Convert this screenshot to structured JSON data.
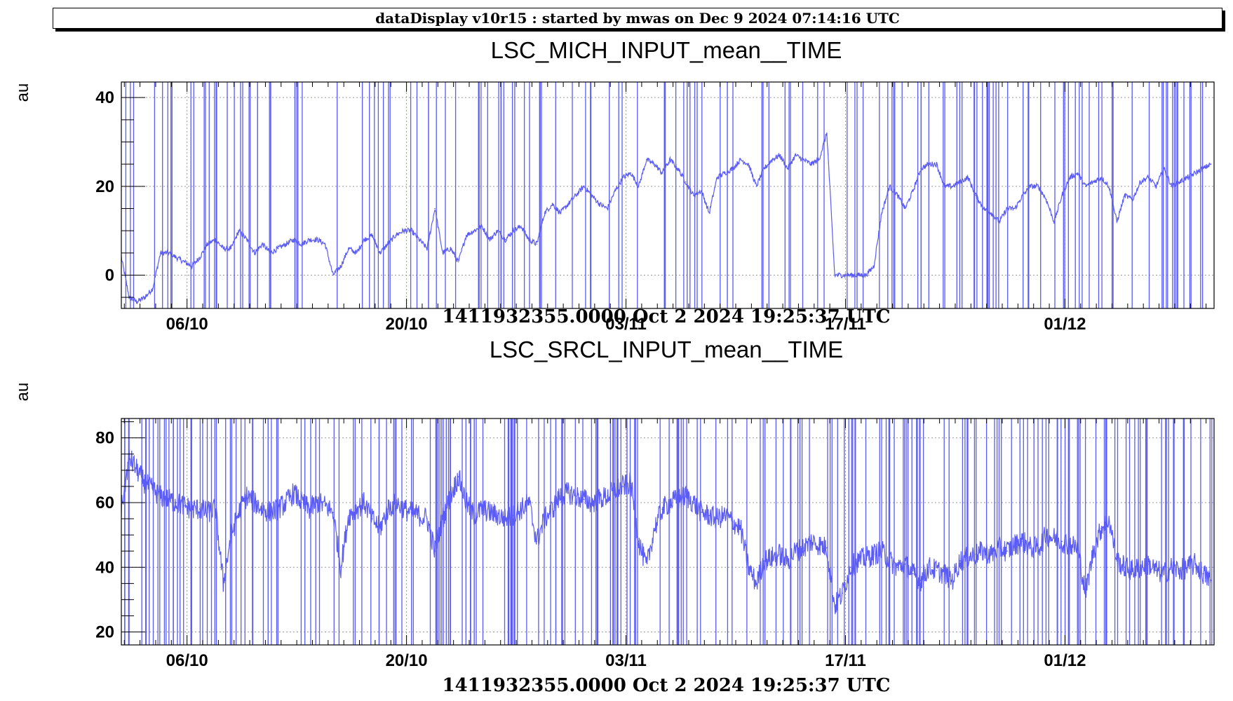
{
  "header": {
    "banner": "dataDisplay v10r15 : started by mwas on Dec  9 2024 07:14:16 UTC"
  },
  "colors": {
    "trace": "#5b5bf5",
    "grid": "#9a9a9a",
    "axis": "#000000"
  },
  "chart_data": [
    {
      "type": "line",
      "title": "LSC_MICH_INPUT_mean__TIME",
      "ylabel": "au",
      "xlabel": "1411932355.0000 Oct 2 2024 19:25:37 UTC",
      "x_unit": "days since Oct 2 2024 19:25:37 UTC",
      "xlim": [
        0,
        69.7
      ],
      "ylim": [
        -7.5,
        43.5
      ],
      "x_ticks": [
        {
          "x": 4.19,
          "label": "06/10"
        },
        {
          "x": 18.19,
          "label": "20/10"
        },
        {
          "x": 32.19,
          "label": "03/11"
        },
        {
          "x": 46.19,
          "label": "17/11"
        },
        {
          "x": 60.19,
          "label": "01/12"
        }
      ],
      "y_ticks": [
        {
          "y": 0,
          "label": "0"
        },
        {
          "y": 20,
          "label": "20"
        },
        {
          "y": 40,
          "label": "40"
        }
      ],
      "grid": true,
      "series": [
        {
          "name": "",
          "x": [
            0,
            0.5,
            1.0,
            1.5,
            2.0,
            2.5,
            3.0,
            3.5,
            4.0,
            4.5,
            5.0,
            5.5,
            6.0,
            6.5,
            7.0,
            7.5,
            8.0,
            8.5,
            9.0,
            9.5,
            10.0,
            10.5,
            11.0,
            11.5,
            12.0,
            12.5,
            13.0,
            13.5,
            14.0,
            14.5,
            15.0,
            15.5,
            16.0,
            16.5,
            17.0,
            17.5,
            18.0,
            18.5,
            19.0,
            19.5,
            20.0,
            20.5,
            21.0,
            21.5,
            22.0,
            22.5,
            23.0,
            23.5,
            24.0,
            24.5,
            25.0,
            25.5,
            26.0,
            26.5,
            27.0,
            27.5,
            28.0,
            28.5,
            29.0,
            29.5,
            30.0,
            30.5,
            31.0,
            31.5,
            32.0,
            32.5,
            33.0,
            33.5,
            34.0,
            34.5,
            35.0,
            35.5,
            36.0,
            36.5,
            37.0,
            37.5,
            38.0,
            38.5,
            39.0,
            39.5,
            40.0,
            40.5,
            41.0,
            41.5,
            42.0,
            42.5,
            43.0,
            43.5,
            44.0,
            44.5,
            45.0,
            45.5,
            46.0,
            46.5,
            47.0,
            47.5,
            48.0,
            48.5,
            49.0,
            49.5,
            50.0,
            50.5,
            51.0,
            51.5,
            52.0,
            52.5,
            53.0,
            53.5,
            54.0,
            54.5,
            55.0,
            55.5,
            56.0,
            56.5,
            57.0,
            57.5,
            58.0,
            58.5,
            59.0,
            59.5,
            60.0,
            60.5,
            61.0,
            61.5,
            62.0,
            62.5,
            63.0,
            63.5,
            64.0,
            64.5,
            65.0,
            65.5,
            66.0,
            66.5,
            67.0,
            67.5,
            68.0,
            68.5,
            69.0,
            69.5
          ],
          "y": [
            4,
            -5,
            -6,
            -5,
            -3,
            5,
            5,
            4,
            3,
            2,
            4,
            7,
            8,
            6,
            6,
            10,
            8,
            5,
            7,
            5,
            6,
            7,
            8,
            7,
            8,
            8,
            7,
            0,
            2,
            6,
            5,
            8,
            9,
            5,
            7,
            9,
            10,
            10,
            8,
            6,
            15,
            5,
            6,
            3,
            9,
            10,
            11,
            8,
            10,
            8,
            10,
            11,
            8,
            7,
            14,
            16,
            14,
            16,
            18,
            20,
            18,
            16,
            15,
            19,
            22,
            23,
            20,
            26,
            25,
            23,
            26,
            24,
            21,
            18,
            19,
            14,
            22,
            23,
            24,
            26,
            25,
            20,
            24,
            26,
            27,
            24,
            27,
            26,
            25,
            26,
            32,
            0,
            0,
            0,
            0,
            0,
            2,
            14,
            20,
            18,
            15,
            19,
            24,
            25,
            25,
            20,
            20,
            21,
            22,
            18,
            15,
            14,
            12,
            15,
            15,
            18,
            20,
            20,
            17,
            12,
            18,
            22,
            23,
            20,
            21,
            22,
            20,
            12,
            18,
            17,
            21,
            22,
            20,
            24,
            20,
            21,
            22,
            23,
            24,
            25
          ]
        }
      ]
    },
    {
      "type": "line",
      "title": "LSC_SRCL_INPUT_mean__TIME",
      "ylabel": "au",
      "xlabel": "1411932355.0000 Oct 2 2024 19:25:37 UTC",
      "x_unit": "days since Oct 2 2024 19:25:37 UTC",
      "xlim": [
        0,
        69.7
      ],
      "ylim": [
        16,
        86
      ],
      "x_ticks": [
        {
          "x": 4.19,
          "label": "06/10"
        },
        {
          "x": 18.19,
          "label": "20/10"
        },
        {
          "x": 32.19,
          "label": "03/11"
        },
        {
          "x": 46.19,
          "label": "17/11"
        },
        {
          "x": 60.19,
          "label": "01/12"
        }
      ],
      "y_ticks": [
        {
          "y": 20,
          "label": "20"
        },
        {
          "y": 40,
          "label": "40"
        },
        {
          "y": 60,
          "label": "60"
        },
        {
          "y": 80,
          "label": "80"
        }
      ],
      "grid": true,
      "series": [
        {
          "name": "",
          "x": [
            0,
            0.5,
            1.0,
            1.5,
            2.0,
            2.5,
            3.0,
            3.5,
            4.0,
            4.5,
            5.0,
            5.5,
            6.0,
            6.5,
            7.0,
            7.5,
            8.0,
            8.5,
            9.0,
            9.5,
            10.0,
            10.5,
            11.0,
            11.5,
            12.0,
            12.5,
            13.0,
            13.5,
            14.0,
            14.5,
            15.0,
            15.5,
            16.0,
            16.5,
            17.0,
            17.5,
            18.0,
            18.5,
            19.0,
            19.5,
            20.0,
            20.5,
            21.0,
            21.5,
            22.0,
            22.5,
            23.0,
            23.5,
            24.0,
            24.5,
            25.0,
            25.5,
            26.0,
            26.5,
            27.0,
            27.5,
            28.0,
            28.5,
            29.0,
            29.5,
            30.0,
            30.5,
            31.0,
            31.5,
            32.0,
            32.5,
            33.0,
            33.5,
            34.0,
            34.5,
            35.0,
            35.5,
            36.0,
            36.5,
            37.0,
            37.5,
            38.0,
            38.5,
            39.0,
            39.5,
            40.0,
            40.5,
            41.0,
            41.5,
            42.0,
            42.5,
            43.0,
            43.5,
            44.0,
            44.5,
            45.0,
            45.5,
            46.0,
            46.5,
            47.0,
            47.5,
            48.0,
            48.5,
            49.0,
            49.5,
            50.0,
            50.5,
            51.0,
            51.5,
            52.0,
            52.5,
            53.0,
            53.5,
            54.0,
            54.5,
            55.0,
            55.5,
            56.0,
            56.5,
            57.0,
            57.5,
            58.0,
            58.5,
            59.0,
            59.5,
            60.0,
            60.5,
            61.0,
            61.5,
            62.0,
            62.5,
            63.0,
            63.5,
            64.0,
            64.5,
            65.0,
            65.5,
            66.0,
            66.5,
            67.0,
            67.5,
            68.0,
            68.5,
            69.0,
            69.5
          ],
          "y": [
            58,
            74,
            70,
            66,
            64,
            62,
            61,
            60,
            59,
            58,
            58,
            57,
            58,
            35,
            50,
            57,
            62,
            60,
            58,
            57,
            58,
            60,
            63,
            60,
            58,
            60,
            59,
            57,
            40,
            56,
            58,
            60,
            55,
            52,
            58,
            60,
            58,
            57,
            56,
            55,
            45,
            55,
            62,
            68,
            60,
            56,
            58,
            57,
            56,
            55,
            56,
            58,
            60,
            48,
            55,
            58,
            62,
            63,
            62,
            61,
            60,
            61,
            62,
            64,
            65,
            66,
            48,
            40,
            52,
            58,
            60,
            61,
            62,
            60,
            57,
            56,
            55,
            56,
            54,
            52,
            40,
            35,
            42,
            43,
            44,
            42,
            45,
            46,
            48,
            47,
            46,
            28,
            32,
            40,
            42,
            43,
            44,
            45,
            42,
            40,
            41,
            38,
            36,
            40,
            39,
            38,
            36,
            42,
            43,
            44,
            45,
            44,
            46,
            45,
            47,
            48,
            46,
            46,
            50,
            49,
            48,
            47,
            46,
            32,
            45,
            52,
            55,
            42,
            40,
            39,
            40,
            41,
            39,
            38,
            40,
            39,
            40,
            41,
            38,
            36
          ]
        }
      ]
    }
  ]
}
